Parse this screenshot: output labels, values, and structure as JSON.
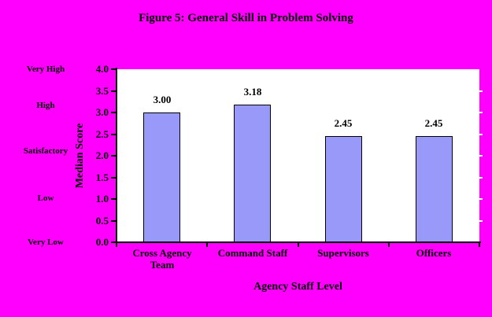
{
  "title": "Figure 5: General Skill in Problem Solving",
  "colors": {
    "background": "#FF00FF",
    "plot_background": "#FFFFFF",
    "bar_fill": "#9999FA",
    "bar_border": "#000000",
    "axis": "#000000",
    "right_tick": "#FFFFFF",
    "text": "#000000"
  },
  "qualitative_scale": [
    "Very High",
    "High",
    "Satisfactory",
    "Low",
    "Very Low"
  ],
  "chart_data": {
    "type": "bar",
    "title": "Figure 5: General Skill in Problem Solving",
    "categories": [
      "Cross Agency Team",
      "Command Staff",
      "Supervisors",
      "Officers"
    ],
    "display_labels": [
      "Cross Agency\nTeam",
      "Command Staff",
      "Supervisors",
      "Officers"
    ],
    "values": [
      3.0,
      3.18,
      2.45,
      2.45
    ],
    "data_labels": [
      "3.00",
      "3.18",
      "2.45",
      "2.45"
    ],
    "xlabel": "Agency Staff Level",
    "ylabel": "Median Score",
    "ylim": [
      0.0,
      4.0
    ],
    "ytick_step": 0.5,
    "ytick_labels": [
      "0.0",
      "0.5",
      "1.0",
      "1.5",
      "2.0",
      "2.5",
      "3.0",
      "3.5",
      "4.0"
    ],
    "grid": false,
    "legend": false
  }
}
